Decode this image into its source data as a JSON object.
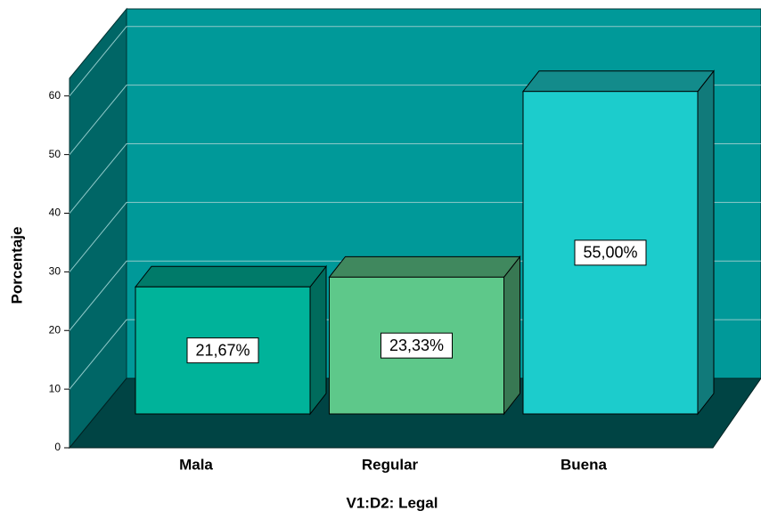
{
  "chart_data": {
    "type": "bar3d",
    "x_label": "V1:D2: Legal",
    "y_label": "Porcentaje",
    "categories": [
      "Mala",
      "Regular",
      "Buena"
    ],
    "values": [
      21.67,
      23.33,
      55.0
    ],
    "value_labels": [
      "21,67%",
      "23,33%",
      "55,00%"
    ],
    "colors": [
      "#00b39a",
      "#5ec88a",
      "#1ccccc"
    ],
    "ylim": [
      0,
      63
    ],
    "yticks": [
      0,
      10,
      20,
      30,
      40,
      50,
      60
    ],
    "grid": true
  }
}
